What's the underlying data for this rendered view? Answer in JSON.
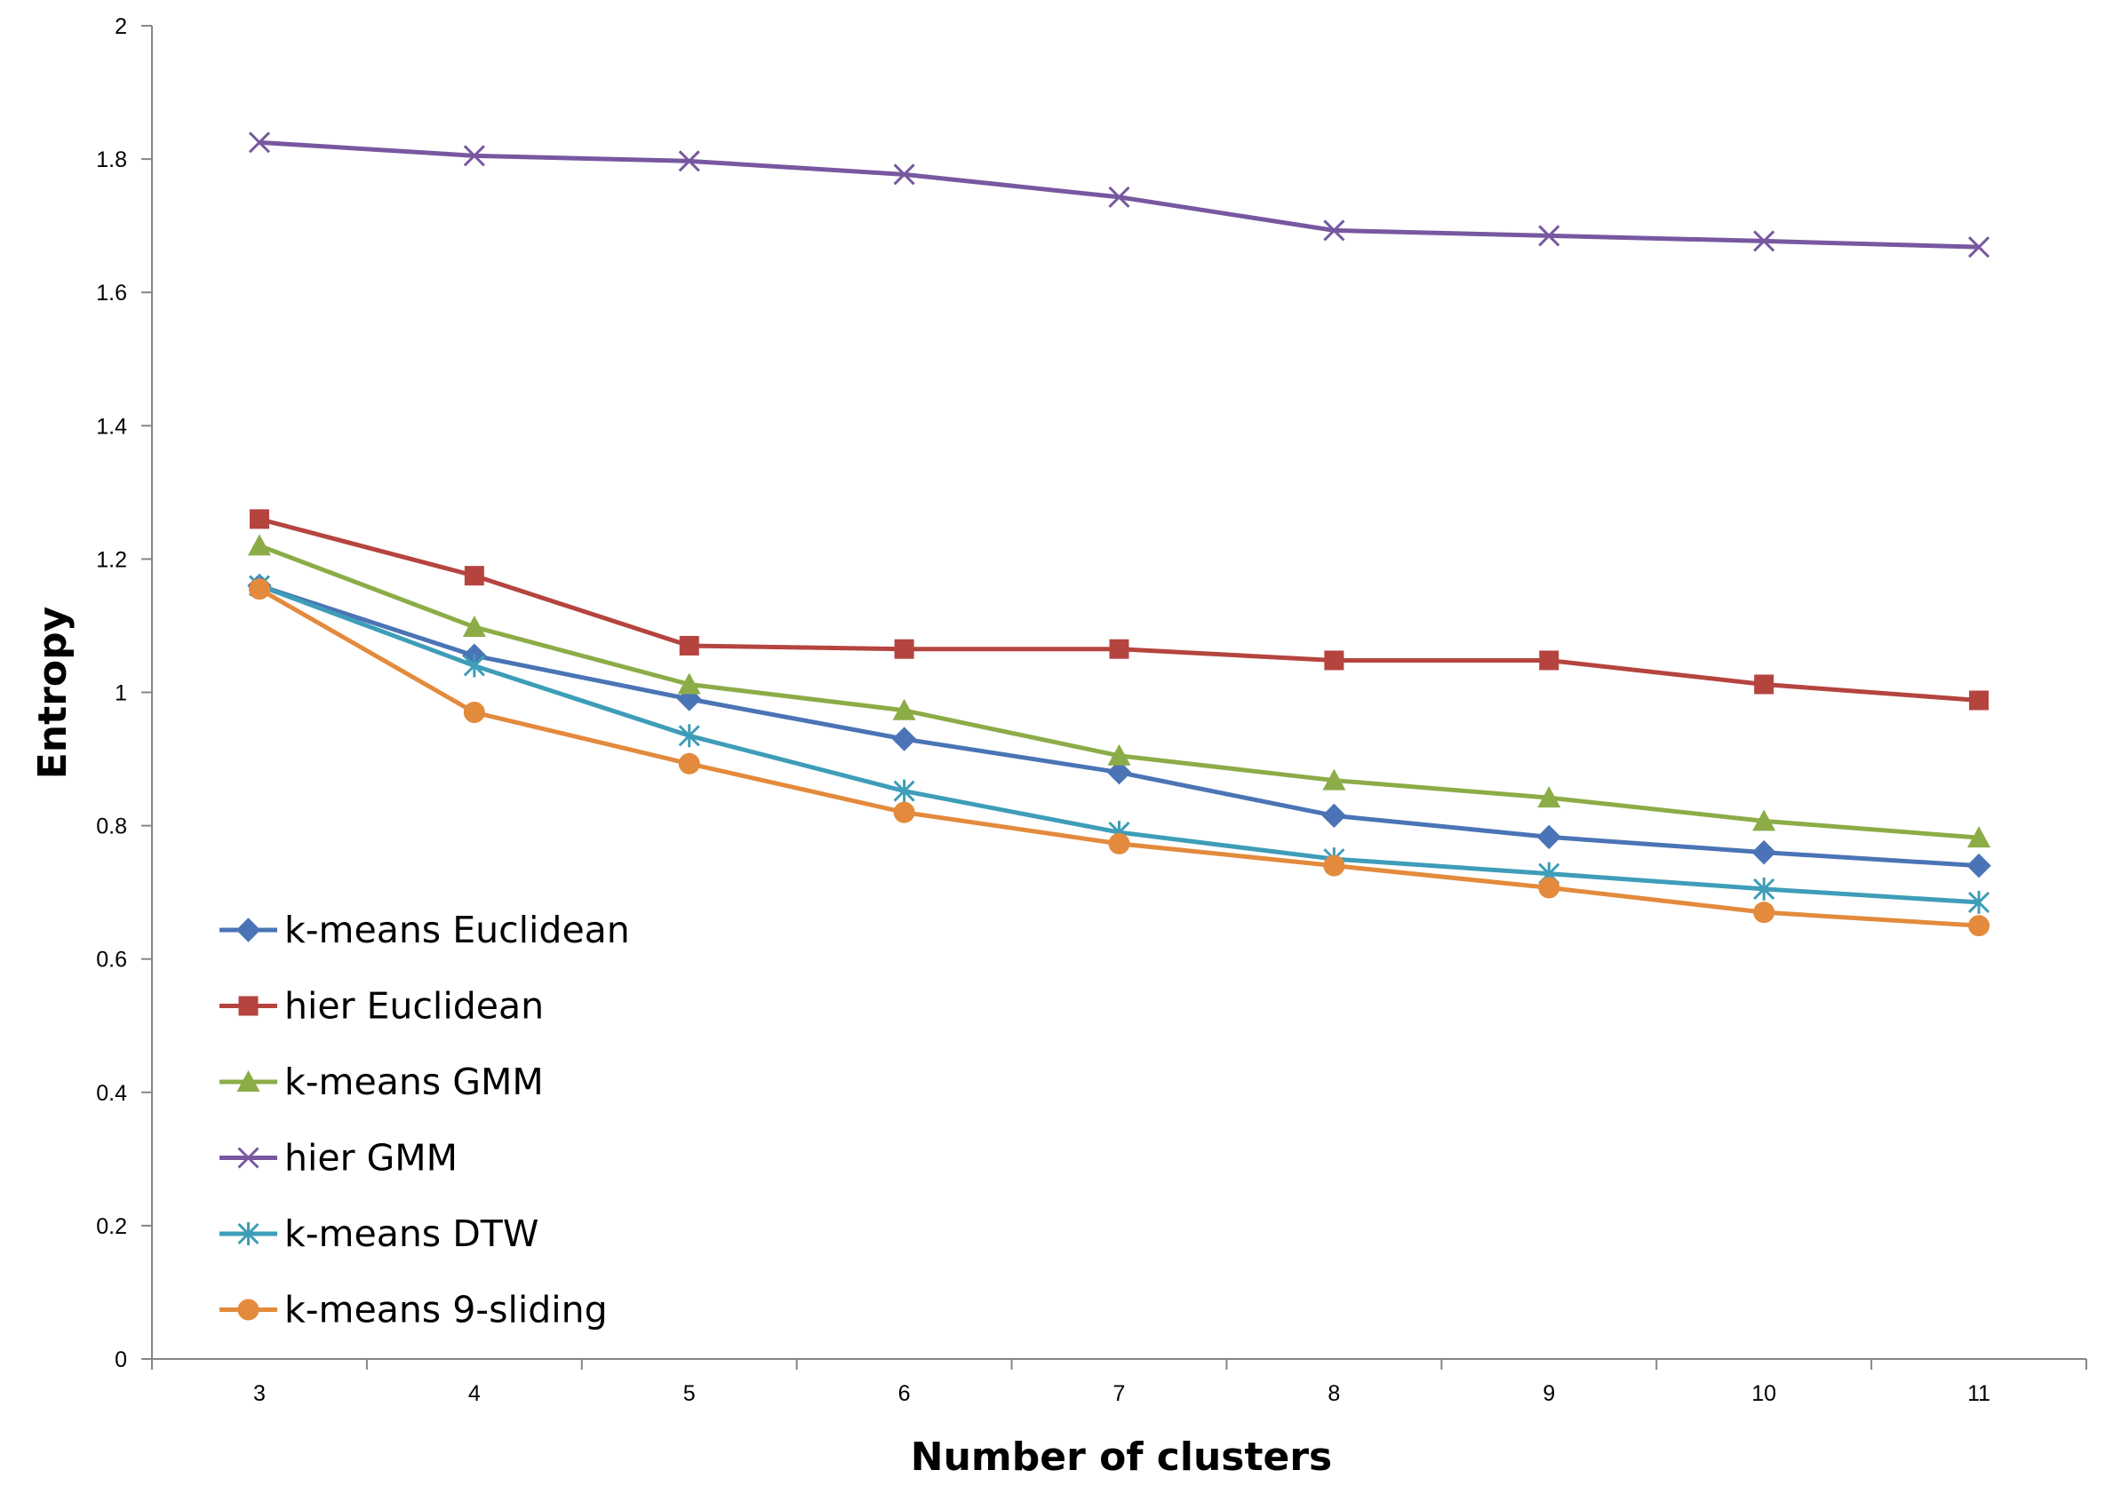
{
  "chart_data": {
    "type": "line",
    "title": "",
    "xlabel": "Number of clusters",
    "ylabel": "Entropy",
    "categories": [
      "3",
      "4",
      "5",
      "6",
      "7",
      "8",
      "9",
      "10",
      "11"
    ],
    "ylim": [
      0,
      2
    ],
    "yticks": [
      "0",
      "0.2",
      "0.4",
      "0.6",
      "0.8",
      "1",
      "1.2",
      "1.4",
      "1.6",
      "1.8",
      "2"
    ],
    "grid": false,
    "legend": "bottom-left",
    "series": [
      {
        "name": "k-means Euclidean",
        "color": "#4A74B5",
        "marker": "diamond",
        "values": [
          1.16,
          1.055,
          0.99,
          0.93,
          0.88,
          0.815,
          0.783,
          0.76,
          0.74
        ]
      },
      {
        "name": "hier Euclidean",
        "color": "#B5443F",
        "marker": "square",
        "values": [
          1.26,
          1.175,
          1.07,
          1.065,
          1.065,
          1.048,
          1.048,
          1.012,
          0.988
        ]
      },
      {
        "name": "k-means GMM",
        "color": "#8CAC47",
        "marker": "triangle",
        "values": [
          1.22,
          1.098,
          1.012,
          0.973,
          0.905,
          0.868,
          0.842,
          0.807,
          0.782
        ]
      },
      {
        "name": "hier GMM",
        "color": "#7758A0",
        "marker": "x",
        "values": [
          1.825,
          1.805,
          1.797,
          1.777,
          1.743,
          1.693,
          1.685,
          1.677,
          1.668
        ]
      },
      {
        "name": "k-means DTW",
        "color": "#3E9DB8",
        "marker": "star",
        "values": [
          1.16,
          1.04,
          0.935,
          0.852,
          0.79,
          0.75,
          0.728,
          0.705,
          0.685
        ]
      },
      {
        "name": "k-means 9-sliding",
        "color": "#E38A3C",
        "marker": "circle",
        "values": [
          1.155,
          0.97,
          0.893,
          0.82,
          0.773,
          0.74,
          0.707,
          0.67,
          0.65
        ]
      }
    ]
  }
}
